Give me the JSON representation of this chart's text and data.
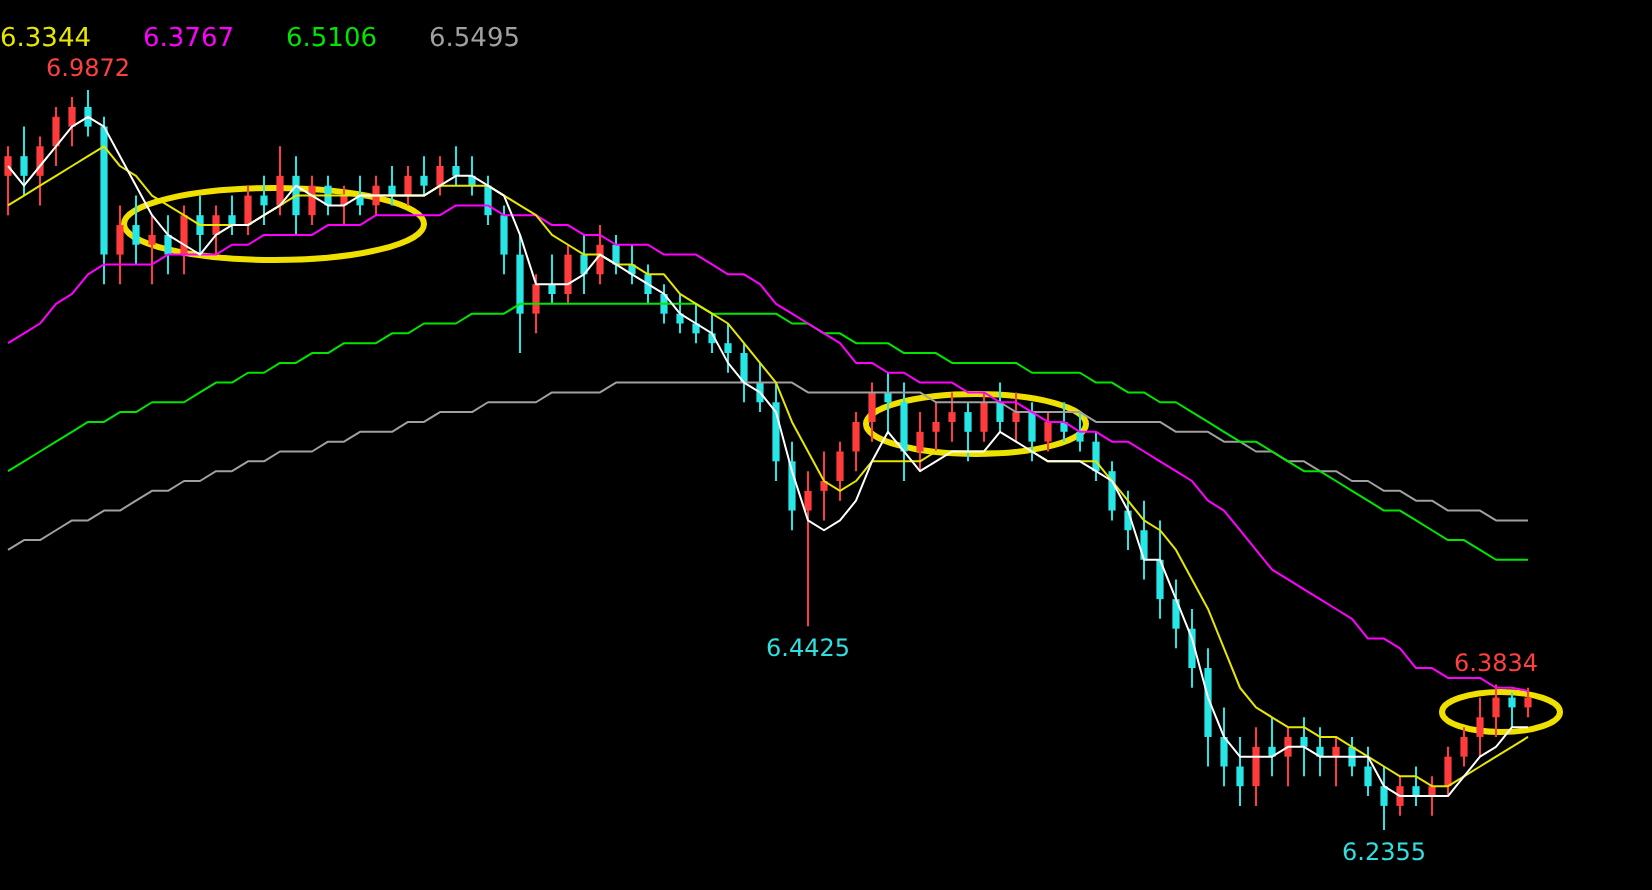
{
  "chart_data": {
    "type": "candlestick",
    "categories": [
      null,
      null,
      null,
      null,
      null,
      null,
      null,
      null,
      null,
      null,
      null,
      null,
      null,
      null,
      null,
      null,
      null,
      null,
      null,
      null,
      null,
      null,
      null,
      null,
      null,
      null,
      null,
      null,
      null,
      null,
      null,
      null,
      null,
      null,
      null,
      null,
      null,
      null,
      null,
      null,
      null,
      null,
      null,
      null,
      null,
      null,
      null,
      null,
      null,
      null,
      null,
      null,
      null,
      null,
      null,
      null,
      null,
      null,
      null,
      null,
      null,
      null,
      null,
      null,
      null,
      null,
      null,
      null,
      null,
      null,
      null,
      null,
      null,
      null,
      null,
      null,
      null,
      null,
      null,
      null,
      null,
      null,
      null,
      null,
      null,
      null,
      null,
      null,
      null,
      null,
      null,
      null,
      null,
      null,
      null,
      null
    ],
    "ohlc": [
      [
        6.9,
        6.93,
        6.86,
        6.92
      ],
      [
        6.92,
        6.95,
        6.88,
        6.9
      ],
      [
        6.9,
        6.94,
        6.87,
        6.93
      ],
      [
        6.93,
        6.97,
        6.91,
        6.96
      ],
      [
        6.95,
        6.98,
        6.93,
        6.97
      ],
      [
        6.97,
        6.9872,
        6.94,
        6.95
      ],
      [
        6.95,
        6.96,
        6.79,
        6.82
      ],
      [
        6.82,
        6.87,
        6.79,
        6.85
      ],
      [
        6.85,
        6.88,
        6.81,
        6.83
      ],
      [
        6.83,
        6.86,
        6.79,
        6.84
      ],
      [
        6.84,
        6.86,
        6.8,
        6.82
      ],
      [
        6.82,
        6.87,
        6.8,
        6.86
      ],
      [
        6.86,
        6.88,
        6.82,
        6.84
      ],
      [
        6.84,
        6.87,
        6.82,
        6.86
      ],
      [
        6.86,
        6.88,
        6.84,
        6.85
      ],
      [
        6.85,
        6.89,
        6.84,
        6.88
      ],
      [
        6.88,
        6.9,
        6.85,
        6.87
      ],
      [
        6.87,
        6.93,
        6.86,
        6.9
      ],
      [
        6.9,
        6.92,
        6.84,
        6.86
      ],
      [
        6.86,
        6.9,
        6.85,
        6.89
      ],
      [
        6.89,
        6.9,
        6.86,
        6.87
      ],
      [
        6.87,
        6.89,
        6.85,
        6.88
      ],
      [
        6.88,
        6.9,
        6.86,
        6.87
      ],
      [
        6.87,
        6.9,
        6.86,
        6.89
      ],
      [
        6.89,
        6.91,
        6.87,
        6.88
      ],
      [
        6.88,
        6.91,
        6.87,
        6.9
      ],
      [
        6.9,
        6.92,
        6.88,
        6.89
      ],
      [
        6.89,
        6.92,
        6.88,
        6.91
      ],
      [
        6.91,
        6.93,
        6.89,
        6.9
      ],
      [
        6.9,
        6.92,
        6.88,
        6.89
      ],
      [
        6.89,
        6.9,
        6.85,
        6.86
      ],
      [
        6.86,
        6.87,
        6.8,
        6.82
      ],
      [
        6.82,
        6.84,
        6.72,
        6.76
      ],
      [
        6.76,
        6.8,
        6.74,
        6.79
      ],
      [
        6.79,
        6.82,
        6.77,
        6.78
      ],
      [
        6.78,
        6.83,
        6.77,
        6.82
      ],
      [
        6.82,
        6.84,
        6.78,
        6.8
      ],
      [
        6.8,
        6.85,
        6.79,
        6.83
      ],
      [
        6.83,
        6.84,
        6.8,
        6.81
      ],
      [
        6.81,
        6.83,
        6.79,
        6.8
      ],
      [
        6.8,
        6.81,
        6.77,
        6.78
      ],
      [
        6.78,
        6.79,
        6.75,
        6.76
      ],
      [
        6.76,
        6.78,
        6.74,
        6.75
      ],
      [
        6.75,
        6.77,
        6.73,
        6.74
      ],
      [
        6.74,
        6.76,
        6.72,
        6.73
      ],
      [
        6.73,
        6.75,
        6.7,
        6.72
      ],
      [
        6.72,
        6.73,
        6.67,
        6.69
      ],
      [
        6.69,
        6.71,
        6.66,
        6.67
      ],
      [
        6.67,
        6.69,
        6.59,
        6.61
      ],
      [
        6.61,
        6.63,
        6.54,
        6.56
      ],
      [
        6.56,
        6.6,
        6.4425,
        6.58
      ],
      [
        6.58,
        6.62,
        6.55,
        6.59
      ],
      [
        6.59,
        6.63,
        6.57,
        6.62
      ],
      [
        6.62,
        6.66,
        6.6,
        6.65
      ],
      [
        6.65,
        6.69,
        6.63,
        6.68
      ],
      [
        6.68,
        6.7,
        6.64,
        6.67
      ],
      [
        6.67,
        6.69,
        6.59,
        6.62
      ],
      [
        6.62,
        6.66,
        6.6,
        6.64
      ],
      [
        6.64,
        6.67,
        6.62,
        6.65
      ],
      [
        6.65,
        6.68,
        6.63,
        6.66
      ],
      [
        6.66,
        6.67,
        6.61,
        6.64
      ],
      [
        6.64,
        6.68,
        6.63,
        6.67
      ],
      [
        6.67,
        6.69,
        6.64,
        6.65
      ],
      [
        6.65,
        6.68,
        6.63,
        6.66
      ],
      [
        6.66,
        6.67,
        6.61,
        6.63
      ],
      [
        6.63,
        6.66,
        6.62,
        6.65
      ],
      [
        6.65,
        6.67,
        6.63,
        6.64
      ],
      [
        6.64,
        6.66,
        6.62,
        6.63
      ],
      [
        6.63,
        6.64,
        6.59,
        6.6
      ],
      [
        6.6,
        6.61,
        6.55,
        6.56
      ],
      [
        6.56,
        6.58,
        6.52,
        6.54
      ],
      [
        6.54,
        6.57,
        6.49,
        6.51
      ],
      [
        6.51,
        6.55,
        6.45,
        6.47
      ],
      [
        6.47,
        6.49,
        6.42,
        6.44
      ],
      [
        6.44,
        6.46,
        6.38,
        6.4
      ],
      [
        6.4,
        6.42,
        6.3,
        6.33
      ],
      [
        6.33,
        6.36,
        6.28,
        6.3
      ],
      [
        6.3,
        6.33,
        6.26,
        6.28
      ],
      [
        6.28,
        6.34,
        6.26,
        6.32
      ],
      [
        6.32,
        6.35,
        6.29,
        6.31
      ],
      [
        6.31,
        6.34,
        6.28,
        6.33
      ],
      [
        6.33,
        6.35,
        6.29,
        6.32
      ],
      [
        6.32,
        6.34,
        6.29,
        6.31
      ],
      [
        6.31,
        6.33,
        6.28,
        6.32
      ],
      [
        6.32,
        6.33,
        6.29,
        6.3
      ],
      [
        6.3,
        6.32,
        6.27,
        6.28
      ],
      [
        6.28,
        6.3,
        6.2355,
        6.26
      ],
      [
        6.26,
        6.29,
        6.25,
        6.28
      ],
      [
        6.28,
        6.3,
        6.26,
        6.27
      ],
      [
        6.27,
        6.29,
        6.25,
        6.28
      ],
      [
        6.28,
        6.32,
        6.27,
        6.31
      ],
      [
        6.31,
        6.34,
        6.3,
        6.33
      ],
      [
        6.33,
        6.37,
        6.31,
        6.35
      ],
      [
        6.35,
        6.3834,
        6.33,
        6.37
      ],
      [
        6.37,
        6.375,
        6.34,
        6.36
      ],
      [
        6.36,
        6.38,
        6.35,
        6.37
      ]
    ],
    "colors": [
      "#ff3c3c",
      "#29e6e6",
      "#ff3c3c",
      "#ff3c3c",
      "#ff3c3c",
      "#29e6e6",
      "#29e6e6",
      "#ff3c3c",
      "#29e6e6",
      "#ff3c3c",
      "#29e6e6",
      "#ff3c3c",
      "#29e6e6",
      "#ff3c3c",
      "#29e6e6",
      "#ff3c3c",
      "#29e6e6",
      "#ff3c3c",
      "#29e6e6",
      "#ff3c3c",
      "#29e6e6",
      "#ff3c3c",
      "#29e6e6",
      "#ff3c3c",
      "#29e6e6",
      "#ff3c3c",
      "#29e6e6",
      "#ff3c3c",
      "#29e6e6",
      "#29e6e6",
      "#29e6e6",
      "#29e6e6",
      "#29e6e6",
      "#ff3c3c",
      "#29e6e6",
      "#ff3c3c",
      "#29e6e6",
      "#ff3c3c",
      "#29e6e6",
      "#29e6e6",
      "#29e6e6",
      "#29e6e6",
      "#29e6e6",
      "#29e6e6",
      "#29e6e6",
      "#29e6e6",
      "#29e6e6",
      "#29e6e6",
      "#29e6e6",
      "#29e6e6",
      "#ff3c3c",
      "#ff3c3c",
      "#ff3c3c",
      "#ff3c3c",
      "#ff3c3c",
      "#29e6e6",
      "#29e6e6",
      "#ff3c3c",
      "#ff3c3c",
      "#ff3c3c",
      "#29e6e6",
      "#ff3c3c",
      "#29e6e6",
      "#ff3c3c",
      "#29e6e6",
      "#ff3c3c",
      "#29e6e6",
      "#29e6e6",
      "#29e6e6",
      "#29e6e6",
      "#29e6e6",
      "#29e6e6",
      "#29e6e6",
      "#29e6e6",
      "#29e6e6",
      "#29e6e6",
      "#29e6e6",
      "#29e6e6",
      "#ff3c3c",
      "#29e6e6",
      "#ff3c3c",
      "#29e6e6",
      "#29e6e6",
      "#ff3c3c",
      "#29e6e6",
      "#29e6e6",
      "#29e6e6",
      "#ff3c3c",
      "#29e6e6",
      "#ff3c3c",
      "#ff3c3c",
      "#ff3c3c",
      "#ff3c3c",
      "#ff3c3c",
      "#29e6e6",
      "#ff3c3c"
    ],
    "series": [
      {
        "type": "line",
        "color": "#ffffff",
        "values": [
          6.91,
          6.89,
          6.91,
          6.93,
          6.95,
          6.96,
          6.95,
          6.92,
          6.89,
          6.86,
          6.84,
          6.83,
          6.82,
          6.84,
          6.85,
          6.85,
          6.86,
          6.87,
          6.89,
          6.88,
          6.87,
          6.87,
          6.88,
          6.88,
          6.88,
          6.88,
          6.88,
          6.89,
          6.9,
          6.9,
          6.89,
          6.88,
          6.84,
          6.79,
          6.79,
          6.79,
          6.8,
          6.82,
          6.81,
          6.8,
          6.79,
          6.78,
          6.76,
          6.75,
          6.74,
          6.71,
          6.69,
          6.68,
          6.66,
          6.6,
          6.55,
          6.54,
          6.55,
          6.57,
          6.61,
          6.64,
          6.62,
          6.6,
          6.61,
          6.62,
          6.62,
          6.62,
          6.64,
          6.63,
          6.62,
          6.61,
          6.61,
          6.61,
          6.6,
          6.59,
          6.56,
          6.51,
          6.51,
          6.47,
          6.43,
          6.37,
          6.33,
          6.31,
          6.31,
          6.31,
          6.32,
          6.32,
          6.31,
          6.31,
          6.31,
          6.31,
          6.28,
          6.27,
          6.27,
          6.27,
          6.27,
          6.29,
          6.31,
          6.32,
          6.34,
          6.34
        ]
      },
      {
        "type": "line",
        "name": "6.3344",
        "color": "#e6e600",
        "values": [
          6.87,
          6.88,
          6.89,
          6.9,
          6.91,
          6.92,
          6.93,
          6.91,
          6.9,
          6.88,
          6.87,
          6.86,
          6.85,
          6.85,
          6.85,
          6.85,
          6.86,
          6.87,
          6.88,
          6.88,
          6.88,
          6.88,
          6.88,
          6.88,
          6.88,
          6.88,
          6.88,
          6.89,
          6.89,
          6.89,
          6.89,
          6.88,
          6.87,
          6.86,
          6.84,
          6.83,
          6.82,
          6.82,
          6.81,
          6.81,
          6.8,
          6.8,
          6.78,
          6.77,
          6.76,
          6.75,
          6.73,
          6.71,
          6.69,
          6.65,
          6.62,
          6.59,
          6.58,
          6.59,
          6.61,
          6.61,
          6.61,
          6.61,
          6.62,
          6.62,
          6.62,
          6.62,
          6.62,
          6.62,
          6.62,
          6.61,
          6.61,
          6.61,
          6.61,
          6.59,
          6.57,
          6.55,
          6.54,
          6.52,
          6.49,
          6.46,
          6.42,
          6.38,
          6.36,
          6.35,
          6.34,
          6.34,
          6.33,
          6.33,
          6.32,
          6.31,
          6.3,
          6.29,
          6.29,
          6.28,
          6.28,
          6.29,
          6.3,
          6.31,
          6.32,
          6.33
        ]
      },
      {
        "type": "line",
        "name": "6.3767",
        "color": "#ff00ff",
        "values": [
          6.73,
          6.74,
          6.75,
          6.77,
          6.78,
          6.8,
          6.81,
          6.81,
          6.81,
          6.81,
          6.82,
          6.82,
          6.82,
          6.82,
          6.83,
          6.83,
          6.84,
          6.84,
          6.84,
          6.84,
          6.85,
          6.85,
          6.85,
          6.86,
          6.86,
          6.86,
          6.86,
          6.86,
          6.87,
          6.87,
          6.87,
          6.86,
          6.86,
          6.86,
          6.85,
          6.85,
          6.84,
          6.84,
          6.83,
          6.83,
          6.83,
          6.82,
          6.82,
          6.82,
          6.81,
          6.8,
          6.8,
          6.79,
          6.77,
          6.76,
          6.75,
          6.74,
          6.73,
          6.71,
          6.71,
          6.7,
          6.7,
          6.69,
          6.69,
          6.69,
          6.68,
          6.68,
          6.67,
          6.67,
          6.66,
          6.65,
          6.65,
          6.64,
          6.64,
          6.63,
          6.63,
          6.62,
          6.61,
          6.6,
          6.59,
          6.57,
          6.56,
          6.54,
          6.52,
          6.5,
          6.49,
          6.48,
          6.47,
          6.46,
          6.45,
          6.43,
          6.43,
          6.42,
          6.4,
          6.4,
          6.39,
          6.39,
          6.39,
          6.38,
          6.38,
          6.3767
        ]
      },
      {
        "type": "line",
        "name": "6.5106",
        "color": "#00e600",
        "values": [
          6.6,
          6.61,
          6.62,
          6.63,
          6.64,
          6.65,
          6.65,
          6.66,
          6.66,
          6.67,
          6.67,
          6.67,
          6.68,
          6.69,
          6.69,
          6.7,
          6.7,
          6.71,
          6.71,
          6.72,
          6.72,
          6.73,
          6.73,
          6.73,
          6.74,
          6.74,
          6.75,
          6.75,
          6.75,
          6.76,
          6.76,
          6.76,
          6.77,
          6.77,
          6.77,
          6.77,
          6.77,
          6.77,
          6.77,
          6.77,
          6.77,
          6.77,
          6.77,
          6.77,
          6.76,
          6.76,
          6.76,
          6.76,
          6.76,
          6.75,
          6.75,
          6.74,
          6.74,
          6.73,
          6.73,
          6.73,
          6.72,
          6.72,
          6.72,
          6.71,
          6.71,
          6.71,
          6.71,
          6.71,
          6.7,
          6.7,
          6.7,
          6.7,
          6.69,
          6.69,
          6.68,
          6.68,
          6.67,
          6.67,
          6.66,
          6.65,
          6.64,
          6.63,
          6.63,
          6.62,
          6.61,
          6.6,
          6.6,
          6.59,
          6.58,
          6.57,
          6.56,
          6.56,
          6.55,
          6.54,
          6.53,
          6.53,
          6.52,
          6.51,
          6.51,
          6.51
        ]
      },
      {
        "type": "line",
        "name": "6.5495",
        "color": "#a0a0a0",
        "values": [
          6.52,
          6.53,
          6.53,
          6.54,
          6.55,
          6.55,
          6.56,
          6.56,
          6.57,
          6.58,
          6.58,
          6.59,
          6.59,
          6.6,
          6.6,
          6.61,
          6.61,
          6.62,
          6.62,
          6.62,
          6.63,
          6.63,
          6.64,
          6.64,
          6.64,
          6.65,
          6.65,
          6.66,
          6.66,
          6.66,
          6.67,
          6.67,
          6.67,
          6.67,
          6.68,
          6.68,
          6.68,
          6.68,
          6.69,
          6.69,
          6.69,
          6.69,
          6.69,
          6.69,
          6.69,
          6.69,
          6.69,
          6.69,
          6.69,
          6.69,
          6.68,
          6.68,
          6.68,
          6.68,
          6.68,
          6.68,
          6.68,
          6.68,
          6.67,
          6.67,
          6.67,
          6.67,
          6.67,
          6.66,
          6.66,
          6.66,
          6.66,
          6.66,
          6.65,
          6.65,
          6.65,
          6.65,
          6.65,
          6.64,
          6.64,
          6.64,
          6.63,
          6.63,
          6.62,
          6.62,
          6.61,
          6.61,
          6.6,
          6.6,
          6.59,
          6.59,
          6.58,
          6.58,
          6.57,
          6.57,
          6.56,
          6.56,
          6.56,
          6.55,
          6.55,
          6.55
        ]
      }
    ],
    "annotations": [
      {
        "text": "6.9872",
        "y": 6.9872
      },
      {
        "text": "6.4425",
        "y": 6.4425
      },
      {
        "text": "6.2355",
        "y": 6.2355
      },
      {
        "text": "6.3834",
        "y": 6.3834
      }
    ],
    "legend": "top left"
  }
}
